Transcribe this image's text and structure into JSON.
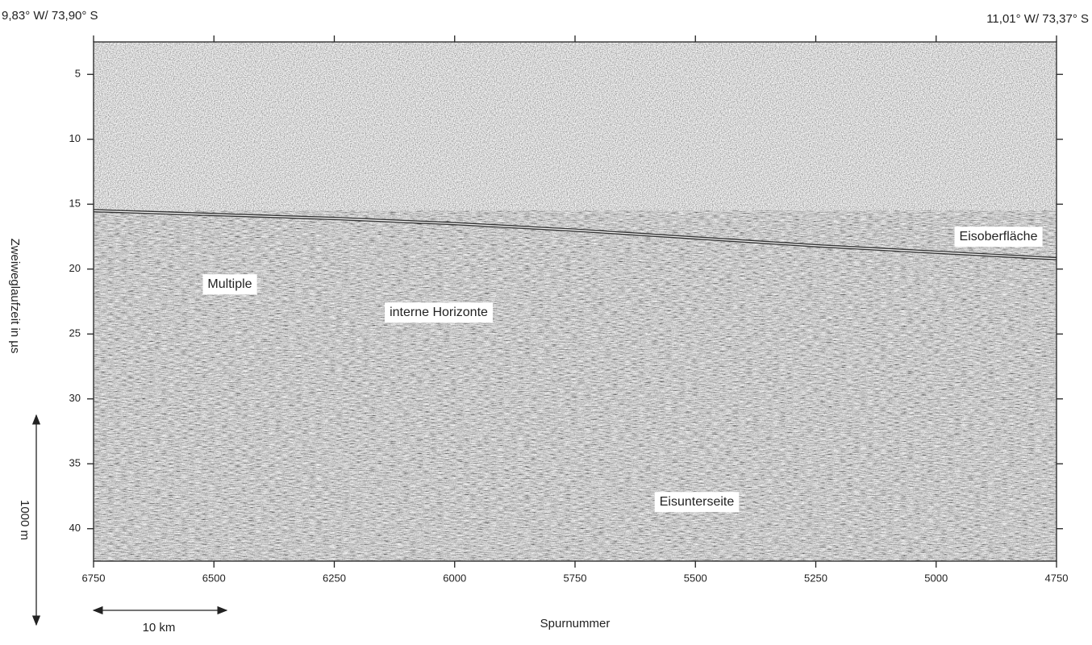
{
  "chart_data": {
    "type": "line",
    "corner_labels": [
      "9,83° W/ 73,90° S",
      "11,01° W/ 73,37° S"
    ],
    "xlabel": "Spurnummer",
    "ylabel": "Zweiweglaufzeit in µs",
    "x": [
      6750,
      6500,
      6250,
      6000,
      5750,
      5500,
      5250,
      5000,
      4750
    ],
    "series": [
      {
        "color": "#f4f4f4",
        "values": [
          15.5,
          15.8,
          16.1,
          16.5,
          17.0,
          17.6,
          18.2,
          18.7,
          19.2
        ]
      }
    ],
    "xlim": [
      6750,
      4750
    ],
    "xticks": [
      6750,
      6500,
      6250,
      6000,
      5750,
      5500,
      5250,
      5000,
      4750
    ],
    "ylim": [
      2.5,
      42.5
    ],
    "yticks": [
      5,
      10,
      15,
      20,
      25,
      30,
      35,
      40
    ],
    "y_inverted": true,
    "annotations": [
      "Multiple",
      "interne Horizonte",
      "Eisoberfläche",
      "Eisunterseite"
    ],
    "scale_bars": [
      "1000 m",
      "10 km"
    ]
  }
}
